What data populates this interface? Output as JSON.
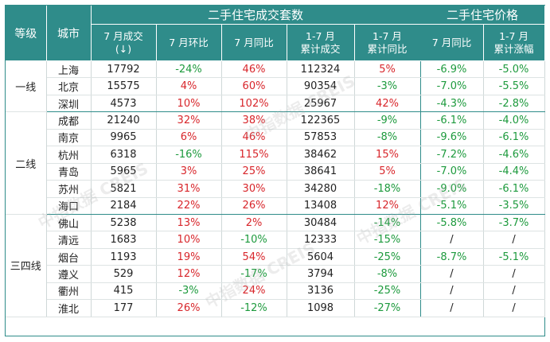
{
  "header": {
    "tier": "等级",
    "city": "城市",
    "group_volume": "二手住宅成交套数",
    "group_price": "二手住宅价格",
    "cols": {
      "jul_volume_l1": "7 月成交",
      "jul_volume_l2": "(↓)",
      "jul_mom": "7 月环比",
      "jul_yoy": "7 月同比",
      "ytd_volume_l1": "1-7 月",
      "ytd_volume_l2": "累计成交",
      "ytd_yoy_l1": "1-7 月",
      "ytd_yoy_l2": "累计同比",
      "price_jul_yoy": "7 月同比",
      "price_ytd_l1": "1-7 月",
      "price_ytd_l2": "累计涨幅"
    }
  },
  "tiers": {
    "t1": "一线",
    "t2": "二线",
    "t3": "三四线"
  },
  "rows": [
    {
      "city": "上海",
      "vol": "17792",
      "mom": "-24%",
      "mom_c": "grn",
      "yoy": "46%",
      "yoy_c": "red",
      "ytd": "112324",
      "ytdy": "5%",
      "ytdy_c": "red",
      "p_yoy": "-6.9%",
      "p_yoy_c": "grn",
      "p_ytd": "-5.0%",
      "p_ytd_c": "grn"
    },
    {
      "city": "北京",
      "vol": "15575",
      "mom": "4%",
      "mom_c": "red",
      "yoy": "60%",
      "yoy_c": "red",
      "ytd": "90354",
      "ytdy": "-3%",
      "ytdy_c": "grn",
      "p_yoy": "-7.0%",
      "p_yoy_c": "grn",
      "p_ytd": "-5.5%",
      "p_ytd_c": "grn"
    },
    {
      "city": "深圳",
      "vol": "4573",
      "mom": "10%",
      "mom_c": "red",
      "yoy": "102%",
      "yoy_c": "red",
      "ytd": "25967",
      "ytdy": "42%",
      "ytdy_c": "red",
      "p_yoy": "-4.3%",
      "p_yoy_c": "grn",
      "p_ytd": "-2.8%",
      "p_ytd_c": "grn"
    },
    {
      "city": "成都",
      "vol": "21240",
      "mom": "32%",
      "mom_c": "red",
      "yoy": "38%",
      "yoy_c": "red",
      "ytd": "122365",
      "ytdy": "-9%",
      "ytdy_c": "grn",
      "p_yoy": "-6.1%",
      "p_yoy_c": "grn",
      "p_ytd": "-4.0%",
      "p_ytd_c": "grn"
    },
    {
      "city": "南京",
      "vol": "9965",
      "mom": "6%",
      "mom_c": "red",
      "yoy": "46%",
      "yoy_c": "red",
      "ytd": "57853",
      "ytdy": "-8%",
      "ytdy_c": "grn",
      "p_yoy": "-9.6%",
      "p_yoy_c": "grn",
      "p_ytd": "-6.1%",
      "p_ytd_c": "grn"
    },
    {
      "city": "杭州",
      "vol": "6318",
      "mom": "-16%",
      "mom_c": "grn",
      "yoy": "115%",
      "yoy_c": "red",
      "ytd": "38462",
      "ytdy": "15%",
      "ytdy_c": "red",
      "p_yoy": "-7.2%",
      "p_yoy_c": "grn",
      "p_ytd": "-4.6%",
      "p_ytd_c": "grn"
    },
    {
      "city": "青岛",
      "vol": "5965",
      "mom": "3%",
      "mom_c": "red",
      "yoy": "25%",
      "yoy_c": "red",
      "ytd": "38641",
      "ytdy": "5%",
      "ytdy_c": "red",
      "p_yoy": "-7.0%",
      "p_yoy_c": "grn",
      "p_ytd": "-4.4%",
      "p_ytd_c": "grn"
    },
    {
      "city": "苏州",
      "vol": "5821",
      "mom": "31%",
      "mom_c": "red",
      "yoy": "30%",
      "yoy_c": "red",
      "ytd": "34280",
      "ytdy": "-18%",
      "ytdy_c": "grn",
      "p_yoy": "-9.0%",
      "p_yoy_c": "grn",
      "p_ytd": "-6.1%",
      "p_ytd_c": "grn"
    },
    {
      "city": "海口",
      "vol": "2184",
      "mom": "22%",
      "mom_c": "red",
      "yoy": "26%",
      "yoy_c": "red",
      "ytd": "13408",
      "ytdy": "12%",
      "ytdy_c": "red",
      "p_yoy": "-5.1%",
      "p_yoy_c": "grn",
      "p_ytd": "-3.5%",
      "p_ytd_c": "grn"
    },
    {
      "city": "佛山",
      "vol": "5238",
      "mom": "13%",
      "mom_c": "red",
      "yoy": "2%",
      "yoy_c": "red",
      "ytd": "30484",
      "ytdy": "-14%",
      "ytdy_c": "grn",
      "p_yoy": "-5.8%",
      "p_yoy_c": "grn",
      "p_ytd": "-3.7%",
      "p_ytd_c": "grn"
    },
    {
      "city": "清远",
      "vol": "1683",
      "mom": "10%",
      "mom_c": "red",
      "yoy": "-10%",
      "yoy_c": "grn",
      "ytd": "12333",
      "ytdy": "-15%",
      "ytdy_c": "grn",
      "p_yoy": "/",
      "p_yoy_c": "",
      "p_ytd": "/",
      "p_ytd_c": ""
    },
    {
      "city": "烟台",
      "vol": "1193",
      "mom": "19%",
      "mom_c": "red",
      "yoy": "54%",
      "yoy_c": "red",
      "ytd": "5604",
      "ytdy": "-25%",
      "ytdy_c": "grn",
      "p_yoy": "-8.7%",
      "p_yoy_c": "grn",
      "p_ytd": "-5.1%",
      "p_ytd_c": "grn"
    },
    {
      "city": "遵义",
      "vol": "529",
      "mom": "12%",
      "mom_c": "red",
      "yoy": "-17%",
      "yoy_c": "grn",
      "ytd": "3794",
      "ytdy": "-8%",
      "ytdy_c": "grn",
      "p_yoy": "/",
      "p_yoy_c": "",
      "p_ytd": "/",
      "p_ytd_c": ""
    },
    {
      "city": "衢州",
      "vol": "415",
      "mom": "-3%",
      "mom_c": "grn",
      "yoy": "24%",
      "yoy_c": "red",
      "ytd": "3136",
      "ytdy": "-25%",
      "ytdy_c": "grn",
      "p_yoy": "/",
      "p_yoy_c": "",
      "p_ytd": "/",
      "p_ytd_c": ""
    },
    {
      "city": "淮北",
      "vol": "177",
      "mom": "26%",
      "mom_c": "red",
      "yoy": "-12%",
      "yoy_c": "grn",
      "ytd": "1098",
      "ytdy": "-27%",
      "ytdy_c": "grn",
      "p_yoy": "/",
      "p_yoy_c": "",
      "p_ytd": "/",
      "p_ytd_c": ""
    }
  ],
  "watermark": "中指数据 CREIS",
  "colors": {
    "header_bg": "#2f8c8a",
    "up": "#d8262b",
    "down": "#1d9a3d"
  }
}
